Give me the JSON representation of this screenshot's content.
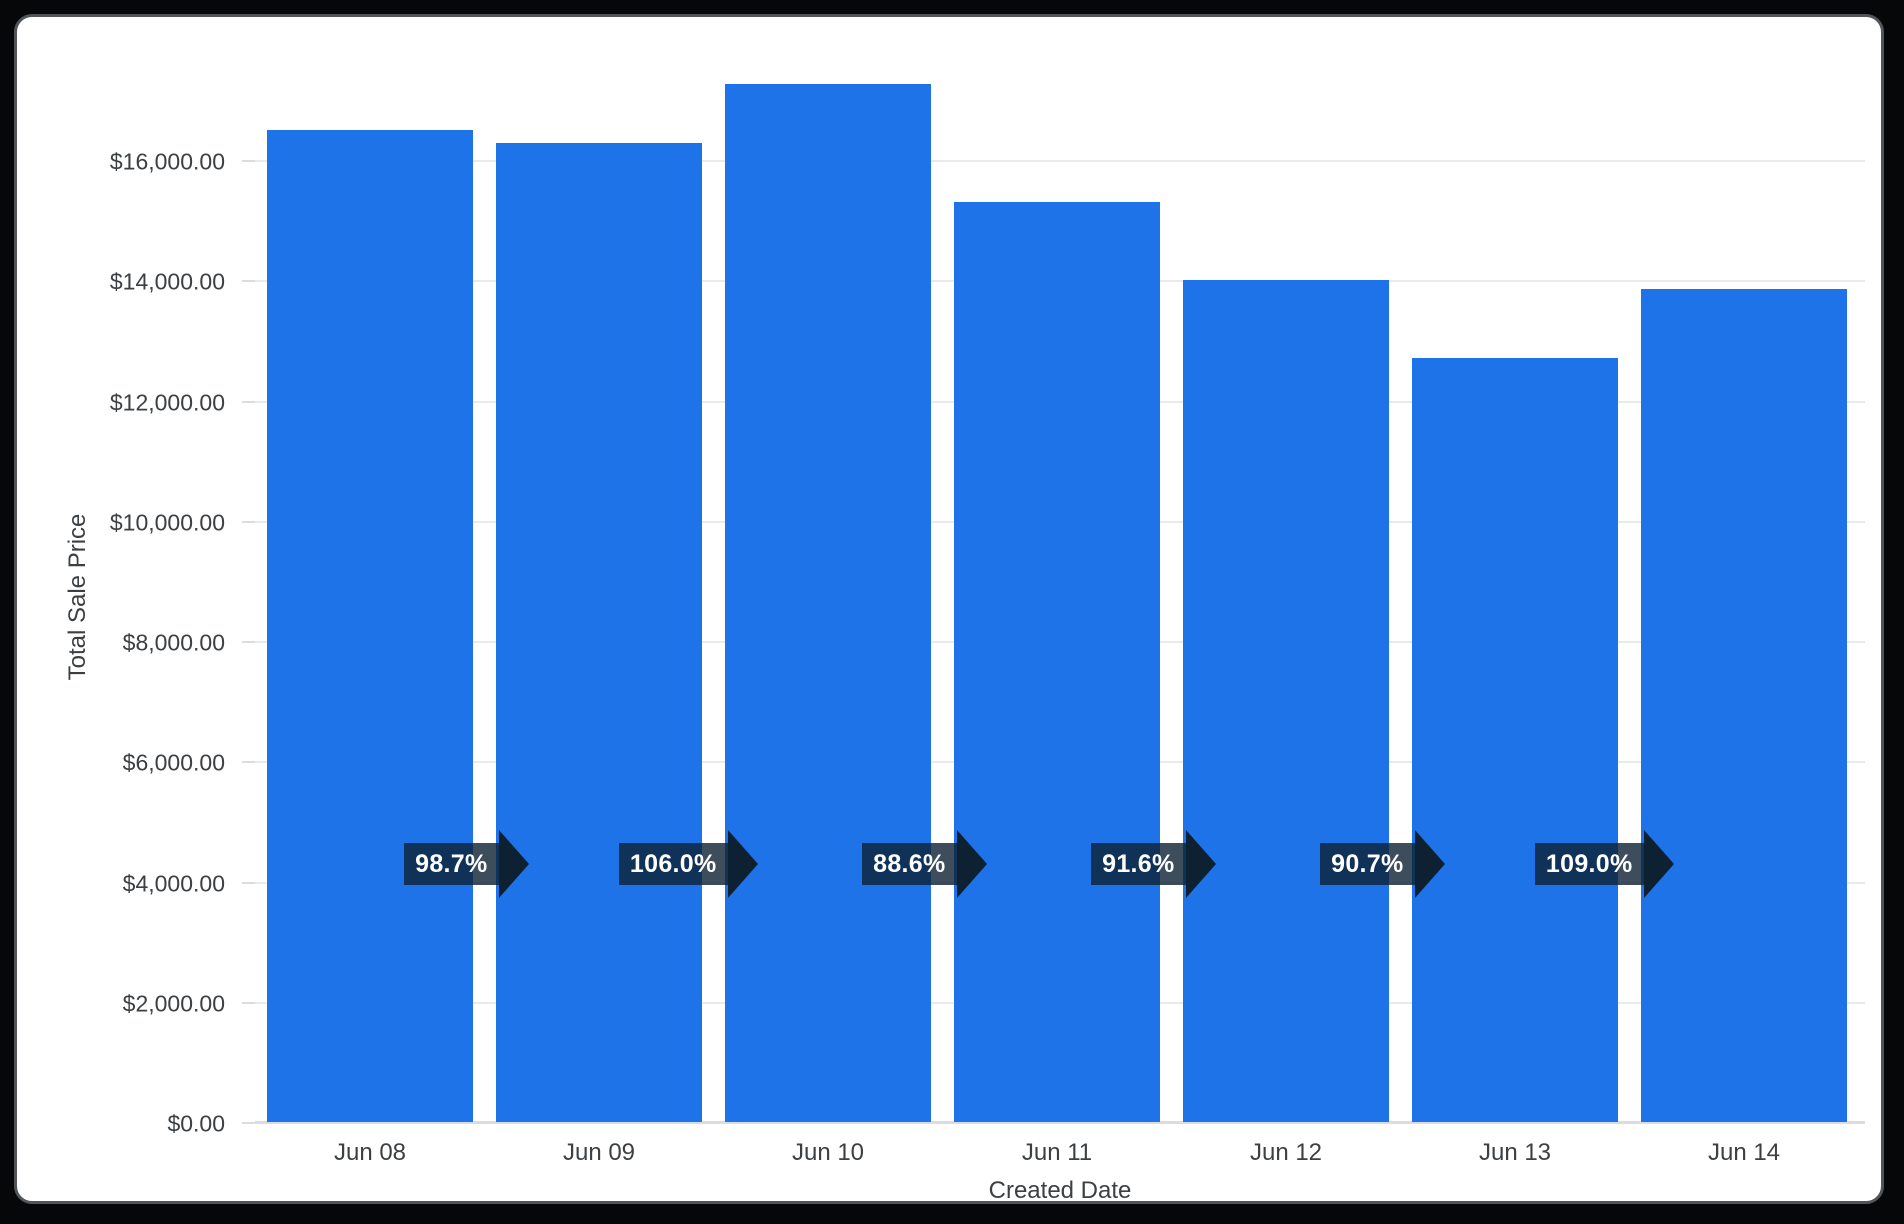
{
  "frame": {
    "outer_background": "#060708",
    "card_background": "#ffffff",
    "card_border_color": "#51555a"
  },
  "chart_data": {
    "type": "bar",
    "title": "",
    "xlabel": "Created Date",
    "ylabel": "Total Sale Price",
    "categories": [
      "Jun 08",
      "Jun 09",
      "Jun 10",
      "Jun 11",
      "Jun 12",
      "Jun 13",
      "Jun 14"
    ],
    "series": [
      {
        "name": "Total Sale Price",
        "values": [
          16500,
          16290,
          17260,
          15300,
          14010,
          12710,
          13850
        ]
      }
    ],
    "growth_labels": [
      "98.7%",
      "106.0%",
      "88.6%",
      "91.6%",
      "90.7%",
      "109.0%"
    ],
    "y_ticks": [
      {
        "label": "$0.00",
        "value": 0
      },
      {
        "label": "$2,000.00",
        "value": 2000
      },
      {
        "label": "$4,000.00",
        "value": 4000
      },
      {
        "label": "$6,000.00",
        "value": 6000
      },
      {
        "label": "$8,000.00",
        "value": 8000
      },
      {
        "label": "$10,000.00",
        "value": 10000
      },
      {
        "label": "$12,000.00",
        "value": 12000
      },
      {
        "label": "$14,000.00",
        "value": 14000
      },
      {
        "label": "$16,000.00",
        "value": 16000
      }
    ],
    "ylim": [
      0,
      17580
    ],
    "grid": true,
    "legend": "none",
    "bar_color": "#1e73e8",
    "badge_fill": "rgba(13,33,51,0.8)",
    "badge_arrow_color": "#0d2133",
    "badge_text_color": "#ffffff",
    "axis_text_color": "#3c4043",
    "gridline_color": "#e9eaed"
  }
}
